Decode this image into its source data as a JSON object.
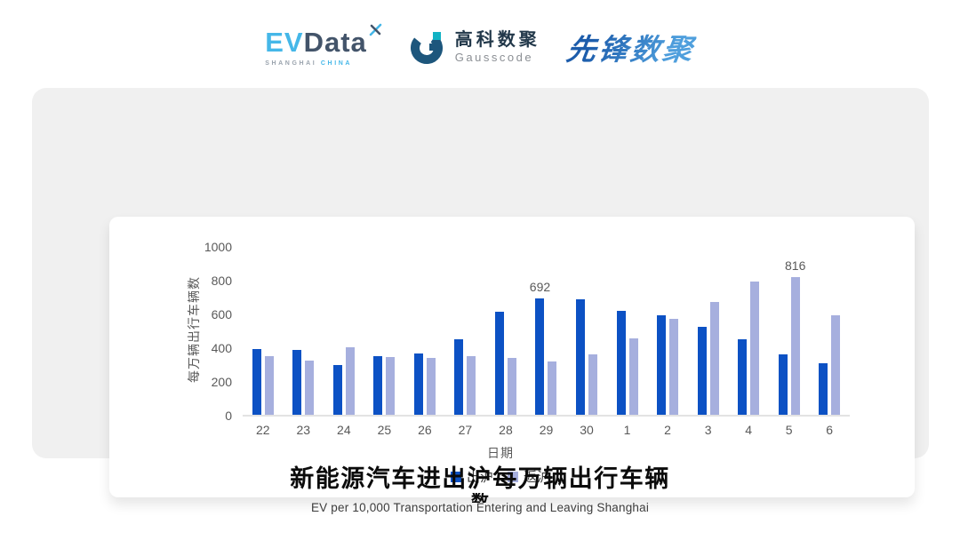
{
  "header": {
    "evdata": {
      "ev": "EV",
      "data": "Data",
      "sub_left": "SHANGHAI",
      "sub_right": "CHINA"
    },
    "gausscode": {
      "cn": "高科数聚",
      "en": "Gausscode"
    },
    "pioneer": {
      "text": "先锋数聚"
    }
  },
  "caption": {
    "title_line1": "新能源汽车进出沪每万辆出行车辆",
    "title_line2": "数",
    "subtitle": "EV per 10,000 Transportation Entering and Leaving Shanghai"
  },
  "chart_data": {
    "type": "bar",
    "title": "新能源汽车进出沪每万辆出行车辆数",
    "categories": [
      "22",
      "23",
      "24",
      "25",
      "26",
      "27",
      "28",
      "29",
      "30",
      "1",
      "2",
      "3",
      "4",
      "5",
      "6"
    ],
    "series": [
      {
        "name": "出沪",
        "color": "#0C51C4",
        "values": [
          390,
          385,
          295,
          350,
          365,
          450,
          610,
          692,
          685,
          615,
          590,
          520,
          445,
          360,
          305
        ],
        "value_labels": [
          null,
          null,
          null,
          null,
          null,
          null,
          null,
          "692",
          null,
          null,
          null,
          null,
          null,
          null,
          null
        ]
      },
      {
        "name": "返沪",
        "color": "#A6AFDE",
        "values": [
          345,
          320,
          400,
          340,
          335,
          345,
          335,
          315,
          360,
          455,
          570,
          670,
          790,
          816,
          590
        ],
        "value_labels": [
          null,
          null,
          null,
          null,
          null,
          null,
          null,
          null,
          null,
          null,
          null,
          null,
          null,
          "816",
          null
        ]
      }
    ],
    "xlabel": "日期",
    "ylabel": "每万辆出行车辆数",
    "ylim": [
      0,
      1000
    ],
    "yticks": [
      0,
      200,
      400,
      600,
      800,
      1000
    ],
    "grid": false,
    "legend_position": "bottom"
  },
  "colors": {
    "panel_bg": "#F0F0F0",
    "card_bg": "#FFFFFF",
    "axis_line": "#E3E3E3",
    "tick_text": "#595959",
    "bar_dark": "#0C51C4",
    "bar_light": "#A6AFDE"
  }
}
